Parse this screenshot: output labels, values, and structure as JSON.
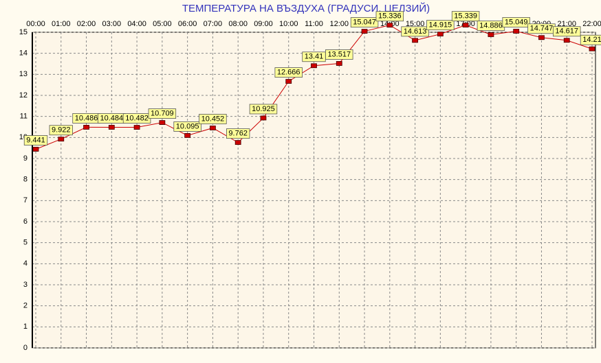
{
  "chart_data": {
    "type": "line",
    "title": "ТЕМПЕРАТУРА НА ВЪЗДУХА  (ГРАДУСИ, ЦЕЛЗИЙ)",
    "categories": [
      "00:00",
      "01:00",
      "02:00",
      "03:00",
      "04:00",
      "05:00",
      "06:00",
      "07:00",
      "08:00",
      "09:00",
      "10:00",
      "11:00",
      "12:00",
      "13:00",
      "14:00",
      "15:00",
      "16:00",
      "17:00",
      "18:00",
      "19:00",
      "20:00",
      "21:00",
      "22:00"
    ],
    "values": [
      9.441,
      9.922,
      10.486,
      10.484,
      10.482,
      10.709,
      10.095,
      10.452,
      9.762,
      10.925,
      12.666,
      13.41,
      13.517,
      15.047,
      15.336,
      14.613,
      14.915,
      15.339,
      14.886,
      15.049,
      14.747,
      14.617,
      14.21
    ],
    "color": "#cc0000",
    "ylim": [
      0,
      15
    ],
    "yticks": [
      0,
      1,
      2,
      3,
      4,
      5,
      6,
      7,
      8,
      9,
      10,
      11,
      12,
      13,
      14,
      15
    ],
    "grid": true,
    "x_axis_position": "top",
    "show_value_labels": true
  }
}
